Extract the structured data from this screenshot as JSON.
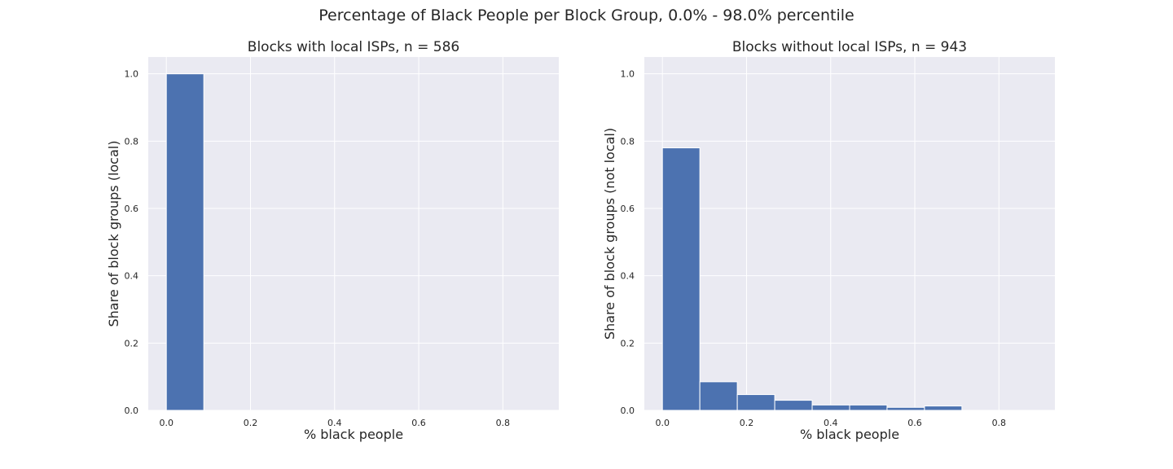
{
  "suptitle": "Percentage of Black People per Block Group, 0.0% - 98.0% percentile",
  "colors": {
    "bar": "#4c72b0",
    "background": "#eaeaf2",
    "grid": "#ffffff"
  },
  "chart_data": [
    {
      "type": "bar",
      "title": "Blocks with local ISPs, n = 586",
      "xlabel": "% black people",
      "ylabel": "Share of block groups (local)",
      "xlim": [
        -0.043,
        0.933
      ],
      "ylim": [
        0,
        1.05
      ],
      "xticks": [
        "0.0",
        "0.2",
        "0.4",
        "0.6",
        "0.8"
      ],
      "yticks": [
        "0.0",
        "0.2",
        "0.4",
        "0.6",
        "0.8",
        "1.0"
      ],
      "grid": true,
      "bins": [
        [
          0.0,
          0.089
        ]
      ],
      "values": [
        1.0
      ]
    },
    {
      "type": "bar",
      "title": "Blocks without local ISPs, n = 943",
      "xlabel": "% black people",
      "ylabel": "Share of block groups (not local)",
      "xlim": [
        -0.043,
        0.933
      ],
      "ylim": [
        0,
        1.05
      ],
      "xticks": [
        "0.0",
        "0.2",
        "0.4",
        "0.6",
        "0.8"
      ],
      "yticks": [
        "0.0",
        "0.2",
        "0.4",
        "0.6",
        "0.8",
        "1.0"
      ],
      "grid": true,
      "bins": [
        [
          0.0,
          0.089
        ],
        [
          0.089,
          0.178
        ],
        [
          0.178,
          0.267
        ],
        [
          0.267,
          0.356
        ],
        [
          0.356,
          0.445
        ],
        [
          0.445,
          0.534
        ],
        [
          0.534,
          0.623
        ],
        [
          0.623,
          0.712
        ]
      ],
      "values": [
        0.78,
        0.085,
        0.047,
        0.03,
        0.016,
        0.016,
        0.009,
        0.013
      ]
    }
  ]
}
